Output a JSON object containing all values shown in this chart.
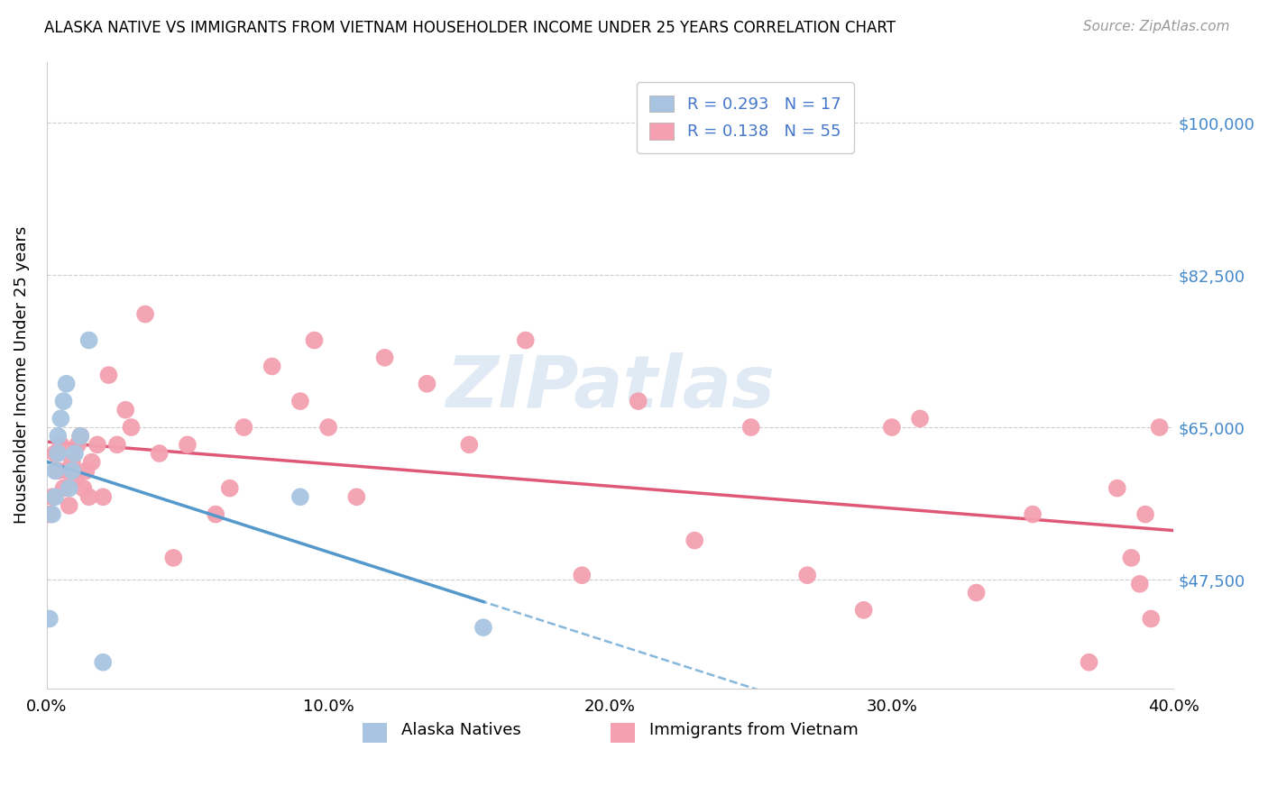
{
  "title": "ALASKA NATIVE VS IMMIGRANTS FROM VIETNAM HOUSEHOLDER INCOME UNDER 25 YEARS CORRELATION CHART",
  "source": "Source: ZipAtlas.com",
  "ylabel": "Householder Income Under 25 years",
  "xlim": [
    0.0,
    0.4
  ],
  "ylim": [
    35000,
    107000
  ],
  "xtick_labels": [
    "0.0%",
    "10.0%",
    "20.0%",
    "30.0%",
    "40.0%"
  ],
  "xtick_values": [
    0.0,
    0.1,
    0.2,
    0.3,
    0.4
  ],
  "ytick_values": [
    47500,
    65000,
    82500,
    100000
  ],
  "ytick_labels": [
    "$47,500",
    "$65,000",
    "$82,500",
    "$100,000"
  ],
  "alaska_R": 0.293,
  "alaska_N": 17,
  "vietnam_R": 0.138,
  "vietnam_N": 55,
  "alaska_color": "#a8c4e0",
  "vietnam_color": "#f4a0b0",
  "alaska_line_color": "#5599cc",
  "vietnam_line_color": "#e05878",
  "legend_text_color": "#4477cc",
  "watermark": "ZIPatlas",
  "alaska_x": [
    0.001,
    0.002,
    0.003,
    0.003,
    0.004,
    0.004,
    0.005,
    0.006,
    0.007,
    0.008,
    0.009,
    0.01,
    0.012,
    0.015,
    0.02,
    0.09,
    0.155
  ],
  "alaska_y": [
    43000,
    55000,
    57000,
    60000,
    62000,
    64000,
    66000,
    68000,
    70000,
    58000,
    60000,
    62000,
    64000,
    75000,
    38000,
    57000,
    42000
  ],
  "vietnam_x": [
    0.001,
    0.002,
    0.003,
    0.004,
    0.005,
    0.006,
    0.007,
    0.008,
    0.009,
    0.01,
    0.011,
    0.012,
    0.013,
    0.014,
    0.015,
    0.016,
    0.018,
    0.02,
    0.022,
    0.025,
    0.028,
    0.03,
    0.035,
    0.04,
    0.045,
    0.05,
    0.06,
    0.065,
    0.07,
    0.08,
    0.09,
    0.095,
    0.1,
    0.11,
    0.12,
    0.135,
    0.15,
    0.17,
    0.19,
    0.21,
    0.23,
    0.25,
    0.27,
    0.29,
    0.3,
    0.31,
    0.33,
    0.35,
    0.37,
    0.38,
    0.385,
    0.388,
    0.39,
    0.392,
    0.395
  ],
  "vietnam_y": [
    55000,
    57000,
    62000,
    60000,
    63000,
    58000,
    60000,
    56000,
    61000,
    59000,
    63000,
    64000,
    58000,
    60000,
    57000,
    61000,
    63000,
    57000,
    71000,
    63000,
    67000,
    65000,
    78000,
    62000,
    50000,
    63000,
    55000,
    58000,
    65000,
    72000,
    68000,
    75000,
    65000,
    57000,
    73000,
    70000,
    63000,
    75000,
    48000,
    68000,
    52000,
    65000,
    48000,
    44000,
    65000,
    66000,
    46000,
    55000,
    38000,
    58000,
    50000,
    47000,
    55000,
    43000,
    65000
  ]
}
